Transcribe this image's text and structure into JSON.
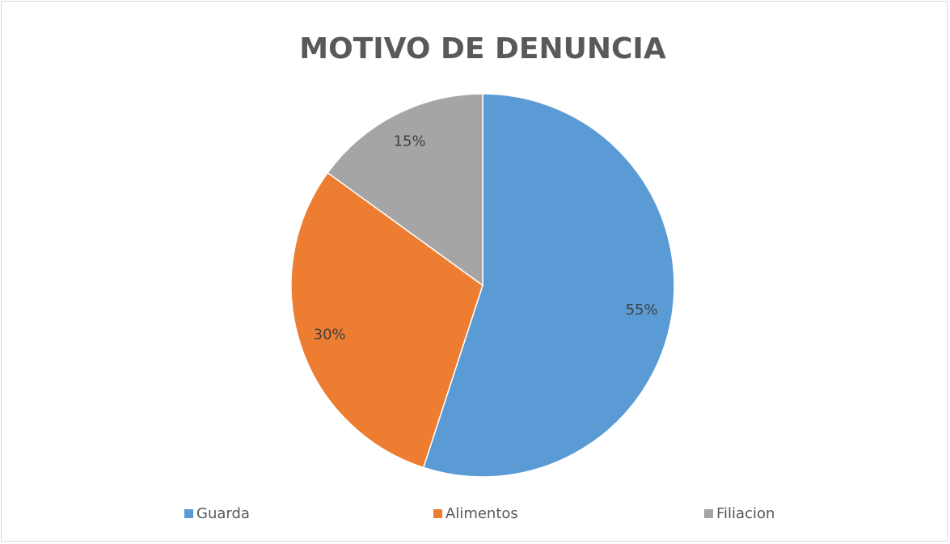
{
  "chart_data": {
    "type": "pie",
    "title": "MOTIVO DE DENUNCIA",
    "categories": [
      "Guarda",
      "Alimentos",
      "Filiacion"
    ],
    "values": [
      55,
      30,
      15
    ],
    "value_labels": [
      "55%",
      "30%",
      "15%"
    ],
    "colors": [
      "#5b9bd5",
      "#ed7d31",
      "#a5a5a5"
    ],
    "legend": "bottom"
  }
}
